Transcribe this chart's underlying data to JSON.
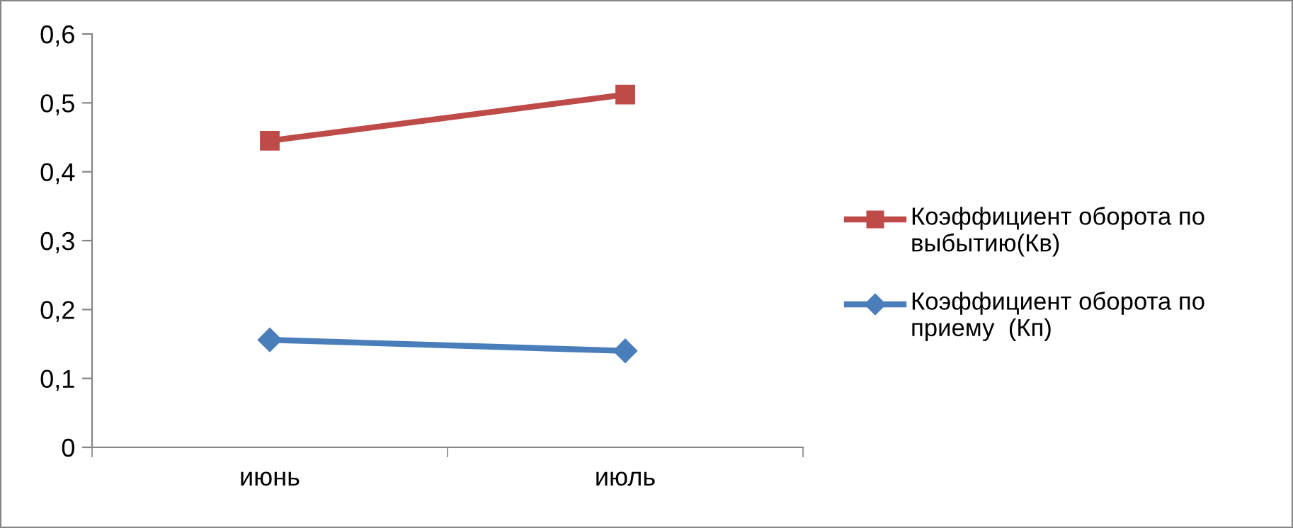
{
  "chart_data": {
    "type": "line",
    "categories": [
      "июнь",
      "июль"
    ],
    "series": [
      {
        "name": "Коэффициент оборота по выбытию(Кв)",
        "color": "#be4b48",
        "marker": "square",
        "values": [
          0.445,
          0.512
        ]
      },
      {
        "name": "Коэффициент оборота по приему  (Кп)",
        "color": "#4a7ebb",
        "marker": "diamond",
        "values": [
          0.156,
          0.14
        ]
      }
    ],
    "ylim": [
      0,
      0.6
    ],
    "yticks": [
      0,
      {
        "value": 0.1,
        "label": "0,1"
      },
      {
        "value": 0.2,
        "label": "0,2"
      },
      {
        "value": 0.3,
        "label": "0,3"
      },
      {
        "value": 0.4,
        "label": "0,4"
      },
      {
        "value": 0.5,
        "label": "0,5"
      },
      {
        "value": 0.6,
        "label": "0,6"
      }
    ],
    "grid": false,
    "legend": "right",
    "line_style": "solid"
  }
}
